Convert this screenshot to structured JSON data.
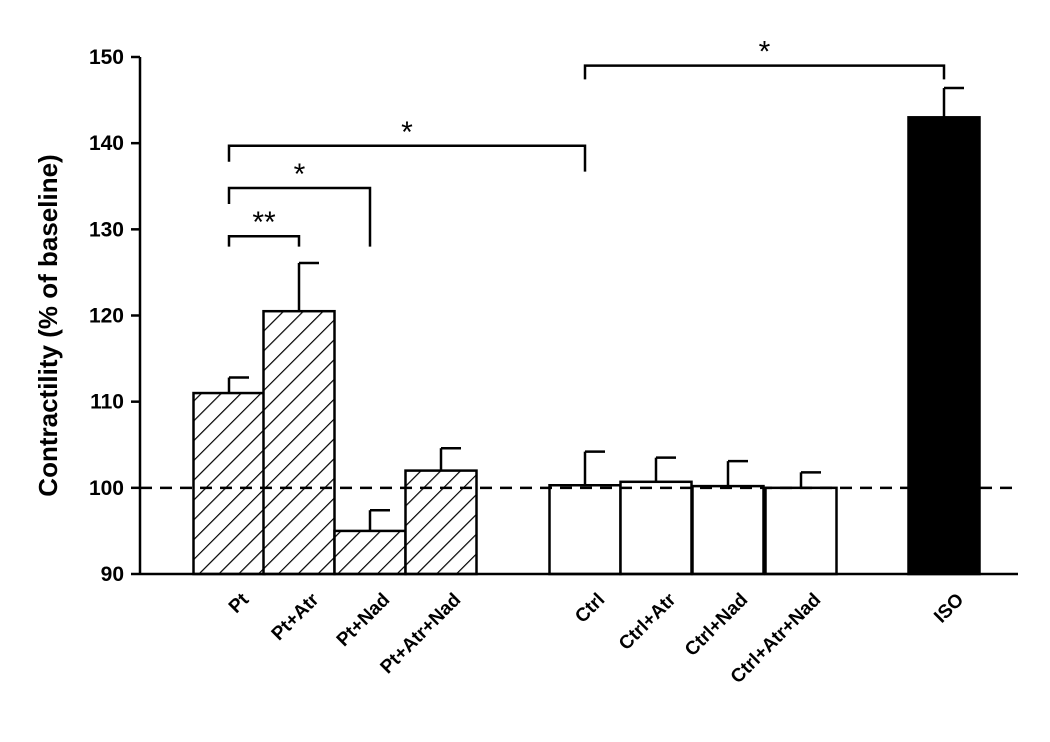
{
  "chart_data": {
    "type": "bar",
    "title": "",
    "xlabel": "",
    "ylabel": "Contractility (% of baseline)",
    "ylim": [
      90,
      150
    ],
    "yticks": [
      90,
      100,
      110,
      120,
      130,
      140,
      150
    ],
    "baseline": 100,
    "grid": false,
    "categories": [
      "Pt",
      "Pt+Atr",
      "Pt+Nad",
      "Pt+Atr+Nad",
      "Ctrl",
      "Ctrl+Atr",
      "Ctrl+Nad",
      "Ctrl+Atr+Nad",
      "ISO"
    ],
    "values": [
      111,
      120.5,
      95,
      102,
      100.3,
      100.7,
      100.2,
      100,
      143
    ],
    "errors": [
      1.8,
      5.6,
      2.4,
      2.6,
      3.9,
      2.8,
      2.9,
      1.8,
      3.4
    ],
    "fills": [
      "hatched",
      "hatched",
      "hatched",
      "hatched",
      "white",
      "white",
      "white",
      "white",
      "black"
    ],
    "significance": [
      {
        "from": "Pt",
        "to": "Pt+Atr",
        "label": "**"
      },
      {
        "from": "Pt",
        "to": "Pt+Nad",
        "label": "*"
      },
      {
        "from": "Pt",
        "to": "Ctrl",
        "label": "*"
      },
      {
        "from": "Ctrl",
        "to": "ISO",
        "label": "*"
      }
    ],
    "colors": {
      "ink": "#000000",
      "white_fill": "#ffffff",
      "solid_fill": "#000000"
    }
  }
}
